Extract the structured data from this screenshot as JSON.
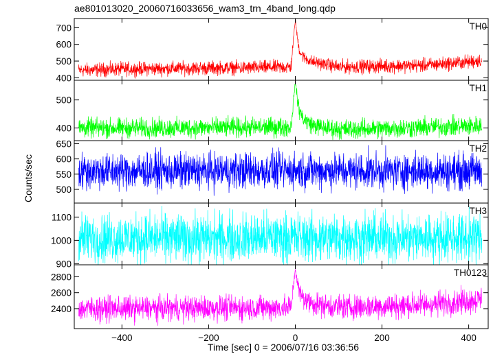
{
  "chart_data": {
    "type": "line",
    "title": "ae801013020_20060716033656_wam3_trn_4band_long.qdp",
    "xlabel": "Time [sec] 0 = 2006/07/16 03:36:56",
    "ylabel": "Counts/sec",
    "xlim": [
      -510,
      445
    ],
    "x_ticks": [
      -400,
      -200,
      0,
      200,
      400
    ],
    "x_tick_labels": [
      "−400",
      "−200",
      "0",
      "200",
      "400"
    ],
    "grid": false,
    "panels": [
      {
        "label": "TH0",
        "color": "#ff0000",
        "ylim": [
          385,
          755
        ],
        "y_ticks": [
          400,
          500,
          600,
          700
        ],
        "y_tick_labels": [
          "400",
          "500",
          "600",
          "700"
        ],
        "series": {
          "x": [
            -500,
            -450,
            -400,
            -300,
            -200,
            -100,
            -10,
            0,
            4,
            10,
            20,
            40,
            70,
            100,
            200,
            300,
            400,
            430
          ],
          "y": [
            445,
            448,
            452,
            455,
            458,
            460,
            465,
            750,
            650,
            560,
            520,
            495,
            480,
            465,
            470,
            475,
            495,
            505
          ],
          "noise": [
            45,
            45,
            45,
            45,
            45,
            45,
            45,
            10,
            30,
            40,
            40,
            40,
            40,
            45,
            45,
            45,
            45,
            45
          ]
        }
      },
      {
        "label": "TH1",
        "color": "#00ff00",
        "ylim": [
          355,
          570
        ],
        "y_ticks": [
          400,
          500
        ],
        "y_tick_labels": [
          "400",
          "500"
        ],
        "series": {
          "x": [
            -500,
            -300,
            -100,
            -10,
            0,
            4,
            10,
            20,
            40,
            70,
            100,
            200,
            300,
            430
          ],
          "y": [
            400,
            400,
            402,
            403,
            565,
            510,
            460,
            430,
            410,
            400,
            395,
            398,
            402,
            408
          ],
          "noise": [
            38,
            38,
            38,
            38,
            5,
            25,
            35,
            35,
            35,
            35,
            38,
            38,
            38,
            38
          ]
        }
      },
      {
        "label": "TH2",
        "color": "#0000ff",
        "ylim": [
          455,
          660
        ],
        "y_ticks": [
          500,
          550,
          600,
          650
        ],
        "y_tick_labels": [
          "500",
          "550",
          "600",
          "650"
        ],
        "series": {
          "x": [
            -500,
            -200,
            0,
            200,
            430
          ],
          "y": [
            560,
            560,
            562,
            560,
            560
          ],
          "noise": [
            65,
            65,
            65,
            65,
            65
          ]
        }
      },
      {
        "label": "TH3",
        "color": "#00ffff",
        "ylim": [
          895,
          1160
        ],
        "y_ticks": [
          900,
          1000,
          1100
        ],
        "y_tick_labels": [
          "900",
          "1000",
          "1100"
        ],
        "series": {
          "x": [
            -500,
            -200,
            0,
            200,
            430
          ],
          "y": [
            1010,
            1010,
            1012,
            1010,
            1012
          ],
          "noise": [
            115,
            115,
            115,
            115,
            115
          ]
        }
      },
      {
        "label": "TH0123",
        "color": "#ff00ff",
        "ylim": [
          2150,
          2950
        ],
        "y_ticks": [
          2400,
          2600,
          2800
        ],
        "y_tick_labels": [
          "2400",
          "2600",
          "2800"
        ],
        "series": {
          "x": [
            -500,
            -300,
            -100,
            -10,
            0,
            4,
            10,
            20,
            40,
            70,
            100,
            200,
            300,
            400,
            430
          ],
          "y": [
            2400,
            2405,
            2410,
            2415,
            2900,
            2750,
            2600,
            2520,
            2470,
            2440,
            2420,
            2430,
            2450,
            2500,
            2520
          ],
          "noise": [
            170,
            170,
            170,
            170,
            30,
            100,
            140,
            150,
            160,
            165,
            170,
            170,
            170,
            170,
            170
          ]
        }
      }
    ]
  }
}
